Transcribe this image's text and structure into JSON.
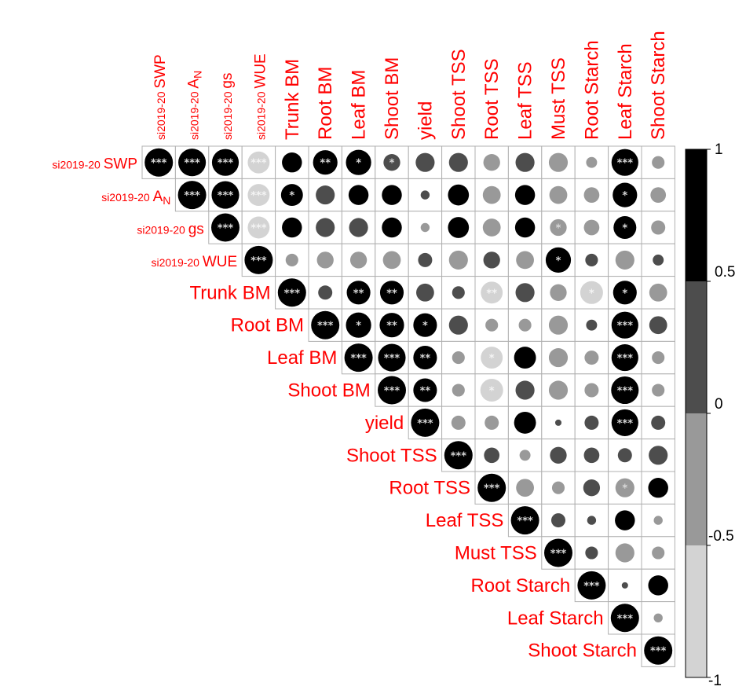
{
  "chart_data": {
    "type": "heatmap",
    "variables": [
      {
        "prefix": "si2019-20",
        "name": "SWP",
        "sub": ""
      },
      {
        "prefix": "si2019-20",
        "name": "A",
        "sub": "N"
      },
      {
        "prefix": "si2019-20",
        "name": "gs",
        "sub": ""
      },
      {
        "prefix": "si2019-20",
        "name": "WUE",
        "sub": ""
      },
      {
        "prefix": "",
        "name": "Trunk BM",
        "sub": ""
      },
      {
        "prefix": "",
        "name": "Root BM",
        "sub": ""
      },
      {
        "prefix": "",
        "name": "Leaf BM",
        "sub": ""
      },
      {
        "prefix": "",
        "name": "Shoot BM",
        "sub": ""
      },
      {
        "prefix": "",
        "name": "yield",
        "sub": ""
      },
      {
        "prefix": "",
        "name": "Shoot TSS",
        "sub": ""
      },
      {
        "prefix": "",
        "name": "Root TSS",
        "sub": ""
      },
      {
        "prefix": "",
        "name": "Leaf TSS",
        "sub": ""
      },
      {
        "prefix": "",
        "name": "Must TSS",
        "sub": ""
      },
      {
        "prefix": "",
        "name": "Root Starch",
        "sub": ""
      },
      {
        "prefix": "",
        "name": "Leaf Starch",
        "sub": ""
      },
      {
        "prefix": "",
        "name": "Shoot Starch",
        "sub": ""
      }
    ],
    "correlation": [
      [
        1,
        0.95,
        0.9,
        -0.6,
        0.5,
        0.75,
        0.8,
        0.35,
        0.45,
        0.45,
        -0.35,
        0.45,
        -0.45,
        -0.15,
        0.9,
        -0.2
      ],
      [
        0.95,
        1,
        0.95,
        -0.6,
        0.6,
        0.45,
        0.5,
        0.5,
        0.1,
        0.55,
        -0.4,
        0.5,
        -0.4,
        -0.3,
        0.75,
        -0.3
      ],
      [
        0.9,
        0.95,
        1,
        -0.6,
        0.5,
        0.45,
        0.45,
        0.5,
        -0.1,
        0.55,
        -0.4,
        0.5,
        -0.35,
        -0.3,
        0.65,
        -0.25
      ],
      [
        -0.6,
        -0.6,
        -0.6,
        1,
        -0.2,
        -0.35,
        -0.35,
        -0.4,
        0.25,
        -0.45,
        0.35,
        -0.4,
        0.8,
        0.2,
        -0.45,
        0.15
      ],
      [
        0.5,
        0.6,
        0.5,
        -0.2,
        1,
        0.25,
        0.7,
        0.7,
        0.4,
        0.2,
        -0.6,
        0.45,
        -0.35,
        -0.65,
        0.7,
        -0.4
      ],
      [
        0.75,
        0.45,
        0.45,
        -0.35,
        0.25,
        1,
        0.8,
        0.75,
        0.7,
        0.45,
        -0.2,
        -0.2,
        -0.45,
        0.15,
        0.9,
        0.4
      ],
      [
        0.8,
        0.5,
        0.45,
        -0.35,
        0.7,
        0.8,
        1,
        0.95,
        0.7,
        -0.2,
        -0.6,
        0.6,
        -0.45,
        -0.25,
        0.9,
        -0.2
      ],
      [
        0.35,
        0.5,
        0.5,
        -0.4,
        0.7,
        0.75,
        0.95,
        1,
        0.7,
        -0.2,
        -0.65,
        0.45,
        -0.45,
        -0.25,
        0.95,
        -0.2
      ],
      [
        0.45,
        0.1,
        -0.1,
        0.25,
        0.4,
        0.7,
        0.7,
        0.7,
        1,
        -0.25,
        -0.25,
        0.6,
        0.05,
        0.25,
        0.9,
        0.25
      ],
      [
        0.45,
        0.55,
        0.55,
        -0.45,
        0.2,
        0.45,
        -0.2,
        -0.2,
        -0.25,
        1,
        0.3,
        -0.15,
        0.35,
        0.3,
        0.25,
        0.45
      ],
      [
        -0.35,
        -0.4,
        -0.4,
        0.35,
        -0.6,
        -0.2,
        -0.6,
        -0.65,
        -0.25,
        0.3,
        1,
        -0.4,
        -0.2,
        0.35,
        -0.45,
        0.5
      ],
      [
        0.45,
        0.5,
        0.5,
        -0.4,
        0.45,
        -0.2,
        0.6,
        0.45,
        0.6,
        -0.15,
        -0.4,
        1,
        0.25,
        0.1,
        0.5,
        -0.1
      ],
      [
        -0.45,
        -0.4,
        -0.35,
        0.8,
        -0.35,
        -0.45,
        -0.45,
        -0.45,
        0.05,
        0.35,
        -0.2,
        0.25,
        1,
        0.2,
        -0.45,
        -0.2
      ],
      [
        -0.15,
        -0.3,
        -0.3,
        0.2,
        -0.65,
        0.15,
        -0.25,
        -0.25,
        0.25,
        0.3,
        0.35,
        0.1,
        0.2,
        1,
        0.05,
        0.5
      ],
      [
        0.9,
        0.75,
        0.65,
        -0.45,
        0.7,
        0.9,
        0.9,
        0.95,
        0.9,
        0.25,
        -0.45,
        0.5,
        -0.45,
        0.05,
        1,
        -0.1
      ],
      [
        -0.2,
        -0.3,
        -0.25,
        0.15,
        -0.4,
        0.4,
        -0.2,
        -0.2,
        0.25,
        0.45,
        0.5,
        -0.1,
        -0.2,
        0.5,
        -0.1,
        1
      ]
    ],
    "significance": [
      [
        "***",
        "***",
        "***",
        "***",
        "",
        "**",
        "*",
        "*",
        "",
        "",
        "",
        "",
        "",
        "",
        "***",
        ""
      ],
      [
        "***",
        "***",
        "***",
        "***",
        "*",
        "",
        "",
        "",
        "",
        "",
        "",
        "",
        "",
        "",
        "*",
        ""
      ],
      [
        "***",
        "***",
        "***",
        "***",
        "",
        "",
        "",
        "",
        "",
        "",
        "",
        "",
        "*",
        "",
        "*",
        ""
      ],
      [
        "***",
        "***",
        "***",
        "***",
        "",
        "",
        "",
        "",
        "",
        "",
        "",
        "",
        "*",
        "",
        "",
        ""
      ],
      [
        "",
        "*",
        "",
        "",
        "***",
        "",
        "**",
        "**",
        "",
        "",
        "**",
        "",
        "",
        "*",
        "*",
        ""
      ],
      [
        "**",
        "",
        "",
        "",
        "",
        "***",
        "*",
        "**",
        "*",
        "",
        "",
        "",
        "",
        "",
        "***",
        ""
      ],
      [
        "*",
        "",
        "",
        "",
        "**",
        "*",
        "***",
        "***",
        "**",
        "",
        "*",
        "",
        "",
        "",
        "***",
        ""
      ],
      [
        "*",
        "",
        "",
        "",
        "**",
        "**",
        "***",
        "***",
        "**",
        "",
        "*",
        "",
        "",
        "",
        "***",
        ""
      ],
      [
        "",
        "",
        "",
        "",
        "",
        "*",
        "**",
        "**",
        "***",
        "",
        "",
        "",
        "",
        "",
        "***",
        ""
      ],
      [
        "",
        "",
        "",
        "",
        "",
        "",
        "",
        "",
        "",
        "***",
        "",
        "",
        "",
        "",
        "",
        ""
      ],
      [
        "",
        "",
        "",
        "",
        "**",
        "",
        "*",
        "*",
        "",
        "",
        "***",
        "",
        "",
        "",
        "*",
        ""
      ],
      [
        "",
        "",
        "",
        "",
        "",
        "",
        "",
        "",
        "",
        "",
        "",
        "***",
        "",
        "",
        "",
        ""
      ],
      [
        "",
        "",
        "*",
        "*",
        "",
        "",
        "",
        "",
        "",
        "",
        "",
        "",
        "***",
        "",
        "",
        ""
      ],
      [
        "",
        "",
        "",
        "",
        "*",
        "",
        "",
        "",
        "",
        "",
        "",
        "",
        "",
        "***",
        "",
        ""
      ],
      [
        "***",
        "*",
        "*",
        "",
        "*",
        "***",
        "***",
        "***",
        "***",
        "",
        "*",
        "",
        "",
        "",
        "***",
        ""
      ],
      [
        "",
        "",
        "",
        "",
        "",
        "",
        "",
        "",
        "",
        "",
        "",
        "",
        "",
        "",
        "",
        "***"
      ]
    ],
    "layout": "upper-triangle",
    "legend": {
      "placement": "right",
      "range": [
        -1,
        1
      ],
      "ticks": [
        "1",
        "0.5",
        "0",
        "-0.5",
        "-1"
      ],
      "bins": [
        {
          "from": 0.5,
          "to": 1,
          "color": "#000000"
        },
        {
          "from": 0,
          "to": 0.5,
          "color": "#4d4d4d"
        },
        {
          "from": -0.5,
          "to": 0,
          "color": "#999999"
        },
        {
          "from": -1,
          "to": -0.5,
          "color": "#d3d3d3"
        }
      ]
    },
    "label_color": "#ff0000"
  }
}
